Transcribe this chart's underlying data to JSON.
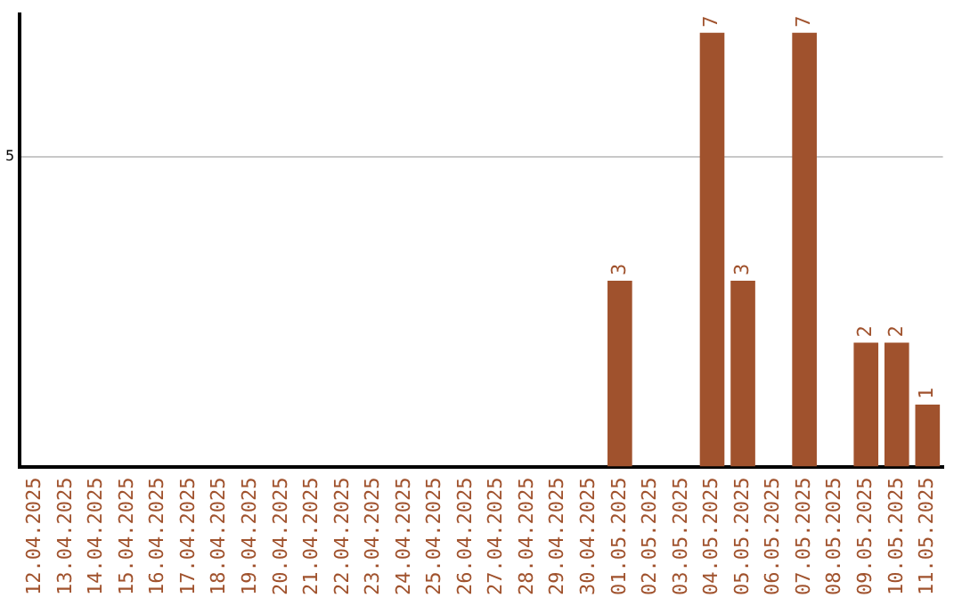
{
  "chart_data": {
    "type": "bar",
    "categories": [
      "12.04.2025",
      "13.04.2025",
      "14.04.2025",
      "15.04.2025",
      "16.04.2025",
      "17.04.2025",
      "18.04.2025",
      "19.04.2025",
      "20.04.2025",
      "21.04.2025",
      "22.04.2025",
      "23.04.2025",
      "24.04.2025",
      "25.04.2025",
      "26.04.2025",
      "27.04.2025",
      "28.04.2025",
      "29.04.2025",
      "30.04.2025",
      "01.05.2025",
      "02.05.2025",
      "03.05.2025",
      "04.05.2025",
      "05.05.2025",
      "06.05.2025",
      "07.05.2025",
      "08.05.2025",
      "09.05.2025",
      "10.05.2025",
      "11.05.2025"
    ],
    "values": [
      null,
      null,
      null,
      null,
      null,
      null,
      null,
      null,
      null,
      null,
      null,
      null,
      null,
      null,
      null,
      null,
      null,
      null,
      null,
      3,
      null,
      null,
      7,
      3,
      null,
      7,
      null,
      2,
      2,
      1
    ],
    "ylim": [
      0,
      7.3
    ],
    "yticks": [
      5
    ],
    "grid": "y",
    "value_labels": [
      null,
      null,
      null,
      null,
      null,
      null,
      null,
      null,
      null,
      null,
      null,
      null,
      null,
      null,
      null,
      null,
      null,
      null,
      null,
      "3",
      null,
      null,
      "7",
      "3",
      null,
      "7",
      null,
      "2",
      "2",
      "1"
    ],
    "color": "#a0522d",
    "legend": false
  }
}
